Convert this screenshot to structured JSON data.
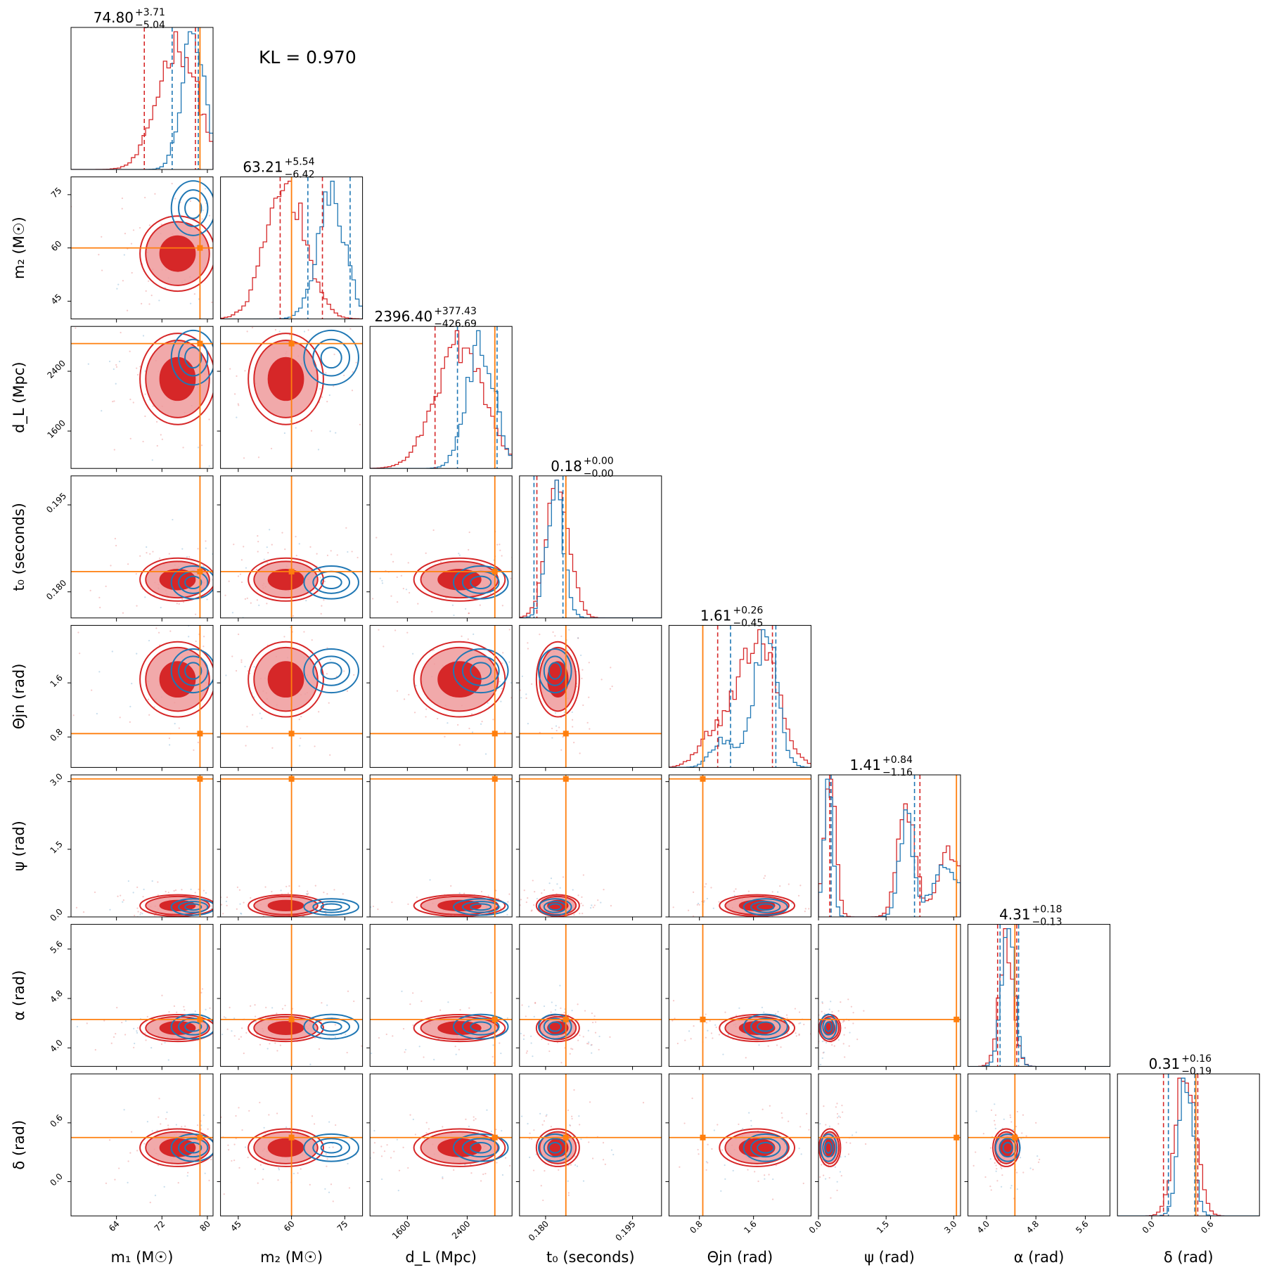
{
  "kl_text": "KL = 0.970",
  "colors": {
    "red": "#d62728",
    "red_light": "#ef9a9b",
    "blue": "#1f77b4",
    "truth": "#ff7f0e"
  },
  "chart_data": {
    "type": "corner",
    "parameters": [
      {
        "key": "m1",
        "label": "m₁ (M☉)",
        "title": {
          "median": "74.80",
          "plus": "+3.71",
          "minus": "−5.04"
        },
        "range": [
          56,
          81
        ],
        "ticks": [
          64,
          72,
          80
        ],
        "tick_labels": [
          "64",
          "72",
          "80"
        ],
        "truth": 78.7,
        "red_quantiles": [
          68.9,
          77.9
        ],
        "blue_quantiles": [
          73.8,
          78.4
        ]
      },
      {
        "key": "m2",
        "label": "m₂ (M☉)",
        "title": {
          "median": "63.21",
          "plus": "+5.54",
          "minus": "−6.42"
        },
        "range": [
          40,
          80
        ],
        "ticks": [
          45,
          60,
          75
        ],
        "tick_labels": [
          "45",
          "60",
          "75"
        ],
        "truth": 60,
        "red_quantiles": [
          56.8,
          68.7
        ],
        "blue_quantiles": [
          64.6,
          76.5
        ]
      },
      {
        "key": "dL",
        "label": "d_L (Mpc)",
        "title": {
          "median": "2396.40",
          "plus": "+377.43",
          "minus": "−426.69"
        },
        "range": [
          1100,
          3000
        ],
        "ticks": [
          1600,
          2400
        ],
        "tick_labels": [
          "1600",
          "2400"
        ],
        "truth": 2770,
        "red_quantiles": [
          1970,
          2770
        ],
        "blue_quantiles": [
          2270,
          2800
        ]
      },
      {
        "key": "t0",
        "label": "t₀ (seconds)",
        "title": {
          "median": "0.18",
          "plus": "+0.00",
          "minus": "−0.00"
        },
        "range": [
          0.1755,
          0.2
        ],
        "ticks": [
          0.18,
          0.195
        ],
        "tick_labels": [
          "0.180",
          "0.195"
        ],
        "truth": 0.1835,
        "red_quantiles": [
          0.1785,
          0.1835
        ],
        "blue_quantiles": [
          0.178,
          0.183
        ]
      },
      {
        "key": "theta_jn",
        "label": "Θjn (rad)",
        "title": {
          "median": "1.61",
          "plus": "+0.26",
          "minus": "−0.45"
        },
        "range": [
          0.35,
          2.45
        ],
        "ticks": [
          0.8,
          1.6
        ],
        "tick_labels": [
          "0.8",
          "1.6"
        ],
        "truth": 0.85,
        "red_quantiles": [
          1.07,
          1.88
        ],
        "blue_quantiles": [
          1.26,
          1.93
        ]
      },
      {
        "key": "psi",
        "label": "ψ (rad)",
        "title": {
          "median": "1.41",
          "plus": "+0.84",
          "minus": "−1.16"
        },
        "range": [
          0,
          3.15
        ],
        "ticks": [
          0.0,
          1.5,
          3.0
        ],
        "tick_labels": [
          "0.0",
          "1.5",
          "3.0"
        ],
        "truth": 3.06,
        "red_quantiles": [
          0.25,
          2.25
        ],
        "blue_quantiles": [
          0.28,
          2.13
        ]
      },
      {
        "key": "alpha",
        "label": "α (rad)",
        "title": {
          "median": "4.31",
          "plus": "+0.18",
          "minus": "−0.13"
        },
        "range": [
          3.7,
          6.0
        ],
        "ticks": [
          4.0,
          4.8,
          5.6
        ],
        "tick_labels": [
          "4.0",
          "4.8",
          "5.6"
        ],
        "truth": 4.46,
        "red_quantiles": [
          4.18,
          4.49
        ],
        "blue_quantiles": [
          4.22,
          4.52
        ]
      },
      {
        "key": "delta",
        "label": "δ (rad)",
        "title": {
          "median": "0.31",
          "plus": "+0.16",
          "minus": "−0.19"
        },
        "range": [
          -0.35,
          1.1
        ],
        "ticks": [
          0.0,
          0.6
        ],
        "tick_labels": [
          "0.0",
          "0.6"
        ],
        "truth": 0.45,
        "red_quantiles": [
          0.12,
          0.47
        ],
        "blue_quantiles": [
          0.17,
          0.44
        ]
      }
    ]
  }
}
